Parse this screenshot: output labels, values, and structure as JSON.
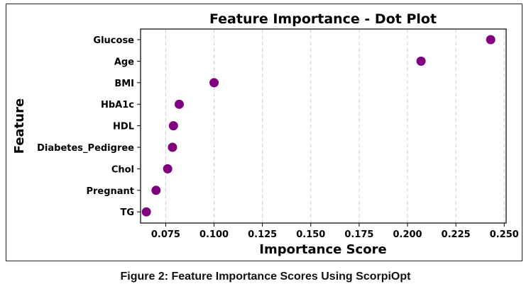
{
  "caption": "Figure 2: Feature Importance Scores Using ScorpiOpt",
  "chart_data": {
    "type": "scatter",
    "title": "Feature Importance - Dot Plot",
    "xlabel": "Importance Score",
    "ylabel": "Feature",
    "categories": [
      "Glucose",
      "Age",
      "BMI",
      "HbA1c",
      "HDL",
      "Diabetes_Pedigree",
      "Chol",
      "Pregnant",
      "TG"
    ],
    "values": [
      0.243,
      0.207,
      0.1,
      0.082,
      0.079,
      0.0785,
      0.076,
      0.07,
      0.065
    ],
    "xlim": [
      0.062,
      0.251
    ],
    "xticks": [
      0.075,
      0.1,
      0.125,
      0.15,
      0.175,
      0.2,
      0.225,
      0.25
    ],
    "xtick_labels": [
      "0.075",
      "0.100",
      "0.125",
      "0.150",
      "0.175",
      "0.200",
      "0.225",
      "0.250"
    ],
    "grid": "x-dashed",
    "marker_color": "#800080"
  }
}
